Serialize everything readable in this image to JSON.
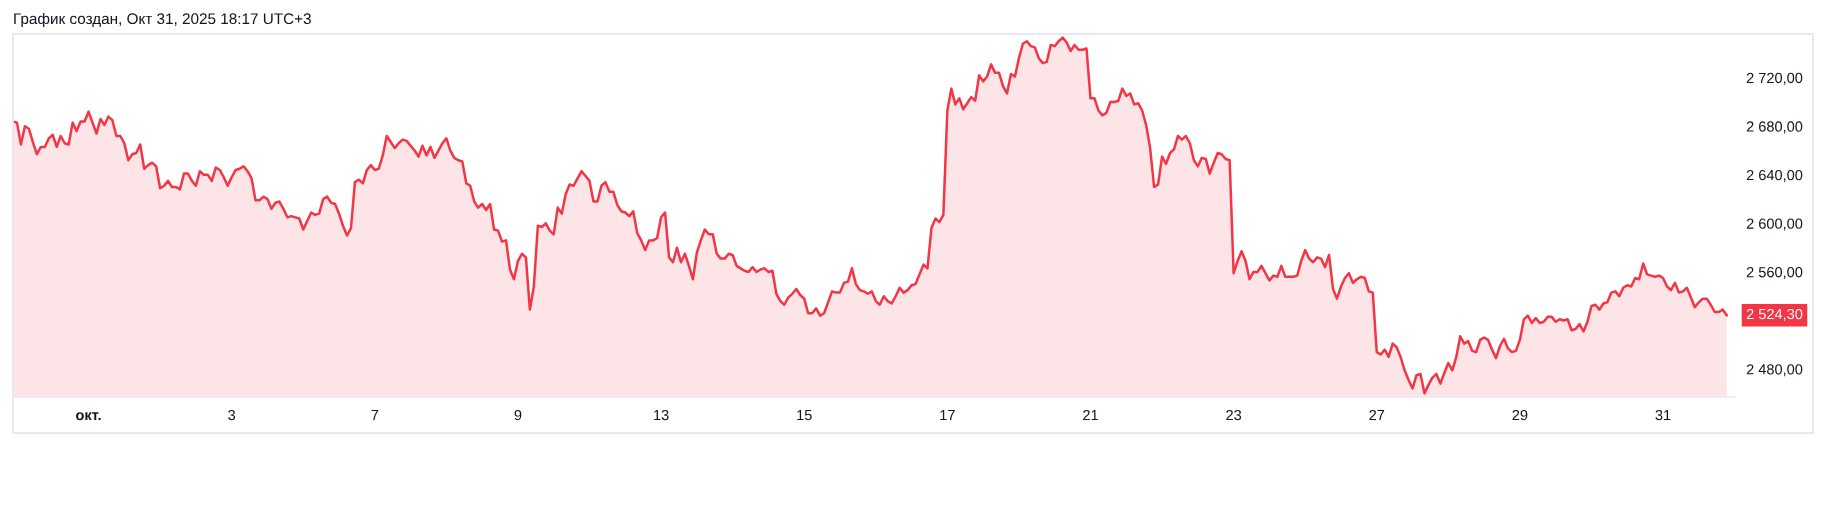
{
  "chart_data": {
    "type": "area",
    "title": "График создан, Окт 31, 2025 18:17 UTC+3",
    "color": "#f23645",
    "categories": [
      null,
      null,
      null,
      null,
      null,
      null,
      null,
      null,
      null,
      null,
      null,
      null,
      null,
      null,
      null,
      null,
      null,
      null,
      null,
      "окт.",
      null,
      null,
      null,
      null,
      null,
      null,
      null,
      null,
      null,
      null,
      null,
      null,
      null,
      null,
      null,
      null,
      null,
      null,
      null,
      null,
      null,
      null,
      null,
      null,
      null,
      null,
      null,
      null,
      null,
      null,
      null,
      null,
      null,
      null,
      null,
      "3",
      null,
      null,
      null,
      null,
      null,
      null,
      null,
      null,
      null,
      null,
      null,
      null,
      null,
      null,
      null,
      null,
      null,
      null,
      null,
      null,
      null,
      null,
      null,
      null,
      null,
      null,
      null,
      null,
      null,
      null,
      null,
      null,
      null,
      null,
      null,
      "7",
      null,
      null,
      null,
      null,
      null,
      null,
      null,
      null,
      null,
      null,
      null,
      null,
      null,
      null,
      null,
      null,
      null,
      null,
      null,
      null,
      null,
      null,
      null,
      null,
      null,
      null,
      null,
      null,
      null,
      null,
      null,
      null,
      null,
      null,
      null,
      "9",
      null,
      null,
      null,
      null,
      null,
      null,
      null,
      null,
      null,
      null,
      null,
      null,
      null,
      null,
      null,
      null,
      null,
      null,
      null,
      null,
      null,
      null,
      null,
      null,
      null,
      null,
      null,
      null,
      null,
      null,
      null,
      null,
      null,
      null,
      null,
      "13",
      null,
      null,
      null,
      null,
      null,
      null,
      null,
      null,
      null,
      null,
      null,
      null,
      null,
      null,
      null,
      null,
      null,
      null,
      null,
      null,
      null,
      null,
      null,
      null,
      null,
      null,
      null,
      null,
      null,
      null,
      null,
      null,
      null,
      null,
      null,
      "15",
      null,
      null,
      null,
      null,
      null,
      null,
      null,
      null,
      null,
      null,
      null,
      null,
      null,
      null,
      null,
      null,
      null,
      null,
      null,
      null,
      null,
      null,
      null,
      null,
      null,
      null,
      null,
      null,
      null,
      null,
      null,
      null,
      null,
      null,
      null,
      "17",
      null,
      null,
      null,
      null,
      null,
      null,
      null,
      null,
      null,
      null,
      null,
      null,
      null,
      null,
      null,
      null,
      null,
      null,
      null,
      null,
      null,
      null,
      null,
      null,
      null,
      null,
      null,
      null,
      null,
      null,
      null,
      null,
      null,
      null,
      null,
      "21",
      null,
      null,
      null,
      null,
      null,
      null,
      null,
      null,
      null,
      null,
      null,
      null,
      null,
      null,
      null,
      null,
      null,
      null,
      null,
      null,
      null,
      null,
      null,
      null,
      null,
      null,
      null,
      null,
      null,
      null,
      null,
      null,
      null,
      null,
      null,
      "23",
      null,
      null,
      null,
      null,
      null,
      null,
      null,
      null,
      null,
      null,
      null,
      null,
      null,
      null,
      null,
      null,
      null,
      null,
      null,
      null,
      null,
      null,
      null,
      null,
      null,
      null,
      null,
      null,
      null,
      null,
      null,
      null,
      null,
      null,
      null,
      "27",
      null,
      null,
      null,
      null,
      null,
      null,
      null,
      null,
      null,
      null,
      null,
      null,
      null,
      null,
      null,
      null,
      null,
      null,
      null,
      null,
      null,
      null,
      null,
      null,
      null,
      null,
      null,
      null,
      null,
      null,
      null,
      null,
      null,
      null,
      null,
      "29",
      null,
      null,
      null,
      null,
      null,
      null,
      null,
      null,
      null,
      null,
      null,
      null,
      null,
      null,
      null,
      null,
      null,
      null,
      null,
      null,
      null,
      null,
      null,
      null,
      null,
      null,
      null,
      null,
      null,
      null,
      null,
      null,
      null,
      null,
      null,
      "31",
      null,
      null,
      null,
      null,
      null,
      null,
      null,
      null,
      null,
      null,
      null,
      null,
      null,
      null,
      null,
      null
    ],
    "values": [
      2684,
      2683,
      2665,
      2680,
      2678,
      2667,
      2657,
      2663,
      2663,
      2670,
      2673,
      2663,
      2672,
      2666,
      2665,
      2683,
      2676,
      2684,
      2684,
      2692,
      2683,
      2674,
      2686,
      2681,
      2688,
      2685,
      2672,
      2672,
      2666,
      2652,
      2657,
      2658,
      2665,
      2645,
      2648,
      2650,
      2647,
      2629,
      2631,
      2635,
      2630,
      2630,
      2628,
      2641,
      2641,
      2635,
      2631,
      2643,
      2640,
      2640,
      2635,
      2646,
      2644,
      2638,
      2631,
      2638,
      2644,
      2645,
      2647,
      2643,
      2637,
      2619,
      2619,
      2622,
      2620,
      2612,
      2617,
      2618,
      2612,
      2605,
      2606,
      2605,
      2604,
      2595,
      2602,
      2609,
      2607,
      2608,
      2620,
      2622,
      2617,
      2616,
      2608,
      2598,
      2590,
      2596,
      2634,
      2636,
      2633,
      2644,
      2648,
      2644,
      2645,
      2656,
      2672,
      2667,
      2662,
      2666,
      2669,
      2668,
      2664,
      2660,
      2655,
      2664,
      2656,
      2663,
      2654,
      2660,
      2666,
      2670,
      2660,
      2654,
      2652,
      2651,
      2633,
      2631,
      2618,
      2613,
      2616,
      2611,
      2616,
      2595,
      2594,
      2585,
      2586,
      2562,
      2554,
      2569,
      2575,
      2572,
      2529,
      2548,
      2598,
      2597,
      2600,
      2594,
      2591,
      2613,
      2608,
      2624,
      2632,
      2631,
      2637,
      2643,
      2639,
      2635,
      2618,
      2618,
      2631,
      2634,
      2626,
      2626,
      2615,
      2610,
      2609,
      2606,
      2610,
      2592,
      2586,
      2578,
      2586,
      2586,
      2588,
      2605,
      2609,
      2572,
      2568,
      2580,
      2568,
      2575,
      2565,
      2554,
      2576,
      2586,
      2595,
      2591,
      2591,
      2575,
      2571,
      2571,
      2575,
      2574,
      2565,
      2563,
      2561,
      2560,
      2564,
      2560,
      2562,
      2563,
      2560,
      2561,
      2542,
      2536,
      2533,
      2539,
      2542,
      2546,
      2541,
      2538,
      2526,
      2526,
      2530,
      2524,
      2526,
      2535,
      2544,
      2543,
      2543,
      2551,
      2552,
      2563,
      2550,
      2545,
      2544,
      2542,
      2544,
      2536,
      2533,
      2540,
      2536,
      2534,
      2540,
      2547,
      2543,
      2545,
      2549,
      2550,
      2558,
      2566,
      2563,
      2596,
      2604,
      2601,
      2607,
      2693,
      2711,
      2698,
      2703,
      2694,
      2699,
      2704,
      2701,
      2722,
      2717,
      2721,
      2731,
      2724,
      2724,
      2713,
      2707,
      2723,
      2721,
      2736,
      2748,
      2750,
      2746,
      2745,
      2736,
      2732,
      2733,
      2747,
      2746,
      2750,
      2753,
      2749,
      2742,
      2747,
      2743,
      2743,
      2744,
      2703,
      2703,
      2693,
      2689,
      2691,
      2700,
      2700,
      2701,
      2711,
      2705,
      2707,
      2698,
      2699,
      2693,
      2681,
      2662,
      2630,
      2632,
      2655,
      2649,
      2658,
      2661,
      2672,
      2669,
      2672,
      2666,
      2652,
      2647,
      2654,
      2653,
      2641,
      2650,
      2658,
      2657,
      2653,
      2652,
      2559,
      2569,
      2577,
      2569,
      2554,
      2560,
      2560,
      2565,
      2559,
      2553,
      2557,
      2556,
      2565,
      2556,
      2556,
      2556,
      2557,
      2569,
      2578,
      2571,
      2568,
      2572,
      2571,
      2564,
      2574,
      2546,
      2538,
      2548,
      2555,
      2559,
      2551,
      2554,
      2556,
      2555,
      2544,
      2543,
      2494,
      2492,
      2496,
      2490,
      2501,
      2498,
      2490,
      2479,
      2471,
      2464,
      2475,
      2476,
      2460,
      2467,
      2473,
      2476,
      2468,
      2477,
      2485,
      2479,
      2490,
      2507,
      2501,
      2503,
      2495,
      2494,
      2504,
      2506,
      2504,
      2496,
      2489,
      2499,
      2505,
      2497,
      2494,
      2495,
      2504,
      2521,
      2524,
      2518,
      2522,
      2518,
      2519,
      2523,
      2523,
      2519,
      2521,
      2520,
      2521,
      2512,
      2513,
      2517,
      2511,
      2519,
      2532,
      2533,
      2529,
      2534,
      2535,
      2543,
      2544,
      2540,
      2547,
      2549,
      2548,
      2555,
      2554,
      2567,
      2558,
      2557,
      2556,
      2557,
      2555,
      2548,
      2545,
      2551,
      2543,
      2544,
      2547,
      2539,
      2531,
      2535,
      2538,
      2538,
      2533,
      2527,
      2527,
      2529,
      2524.3
    ],
    "ylim": [
      2457,
      2756
    ],
    "yticks": [
      {
        "value": 2480,
        "label": "2 480,00"
      },
      {
        "value": 2560,
        "label": "2 560,00"
      },
      {
        "value": 2600,
        "label": "2 600,00"
      },
      {
        "value": 2640,
        "label": "2 640,00"
      },
      {
        "value": 2680,
        "label": "2 680,00"
      },
      {
        "value": 2720,
        "label": "2 720,00"
      }
    ],
    "annotations": [
      "2 524,30"
    ]
  }
}
